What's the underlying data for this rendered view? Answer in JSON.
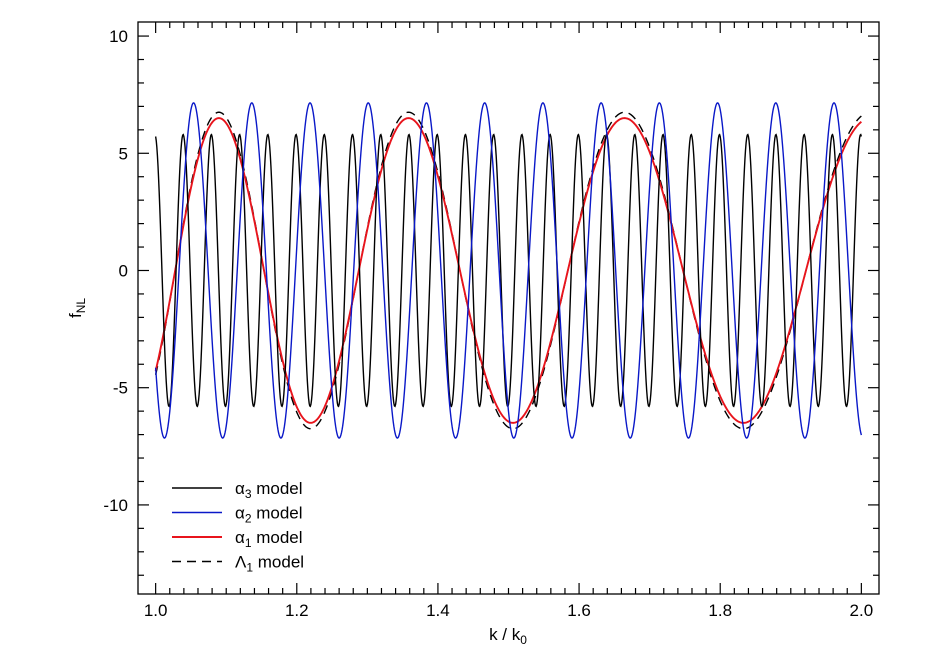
{
  "chart_data": {
    "type": "line",
    "title": "",
    "xlabel": "k / k",
    "xlabel_sub": "0",
    "ylabel": "f",
    "ylabel_sub": "NL",
    "xlim": [
      0.975,
      2.025
    ],
    "ylim": [
      -13.8,
      10.6
    ],
    "x_ticks": [
      1.0,
      1.2,
      1.4,
      1.6,
      1.8,
      2.0
    ],
    "x_tick_labels": [
      "1.0",
      "1.2",
      "1.4",
      "1.6",
      "1.8",
      "2.0"
    ],
    "y_ticks": [
      -10,
      -5,
      0,
      5,
      10
    ],
    "y_tick_labels": [
      "-10",
      "-5",
      "0",
      "5",
      "10"
    ],
    "grid": false,
    "legend_position": "bottom-left",
    "series": [
      {
        "name": "α",
        "name_sub": "3",
        "name_suffix": " model",
        "color": "#000000",
        "dash": "solid",
        "model": {
          "amplitude": 5.8,
          "period": 0.04,
          "phase": 1.74
        },
        "x": [
          1.0,
          1.005,
          1.01,
          1.015,
          1.02,
          1.025,
          1.03,
          1.035,
          1.04,
          1.045,
          1.05,
          1.055,
          1.06,
          1.065,
          1.07,
          1.075,
          1.08,
          1.085,
          1.09,
          1.095,
          1.1,
          1.105,
          1.11,
          1.115,
          1.12,
          1.125,
          1.13,
          1.135,
          1.14,
          1.145,
          1.15,
          1.155,
          1.16,
          1.165,
          1.17,
          1.175,
          1.18,
          1.185,
          1.19,
          1.195,
          1.2,
          1.205,
          1.21,
          1.215,
          1.22,
          1.225,
          1.23,
          1.235,
          1.24,
          1.245,
          1.25,
          1.255,
          1.26,
          1.265,
          1.27,
          1.275,
          1.28,
          1.285,
          1.29,
          1.295,
          1.3,
          1.305,
          1.31,
          1.315,
          1.32,
          1.325,
          1.33,
          1.335,
          1.34,
          1.345,
          1.35,
          1.355,
          1.36,
          1.365,
          1.37,
          1.375,
          1.38,
          1.385,
          1.39,
          1.395,
          1.4,
          1.405,
          1.41,
          1.415,
          1.42,
          1.425,
          1.43,
          1.435,
          1.44,
          1.445,
          1.45,
          1.455,
          1.46,
          1.465,
          1.47,
          1.475,
          1.48,
          1.485,
          1.49,
          1.495,
          1.5,
          1.505,
          1.51,
          1.515,
          1.52,
          1.525,
          1.53,
          1.535,
          1.54,
          1.545,
          1.55,
          1.555,
          1.56,
          1.565,
          1.57,
          1.575,
          1.58,
          1.585,
          1.59,
          1.595,
          1.6,
          1.605,
          1.61,
          1.615,
          1.62,
          1.625,
          1.63,
          1.635,
          1.64,
          1.645,
          1.65,
          1.655,
          1.66,
          1.665,
          1.67,
          1.675,
          1.68,
          1.685,
          1.69,
          1.695,
          1.7,
          1.705,
          1.71,
          1.715,
          1.72,
          1.725,
          1.73,
          1.735,
          1.74,
          1.745,
          1.75,
          1.755,
          1.76,
          1.765,
          1.77,
          1.775,
          1.78,
          1.785,
          1.79,
          1.795,
          1.8,
          1.805,
          1.81,
          1.815,
          1.82,
          1.825,
          1.83,
          1.835,
          1.84,
          1.845,
          1.85,
          1.855,
          1.86,
          1.865,
          1.87,
          1.875,
          1.88,
          1.885,
          1.89,
          1.895,
          1.9,
          1.905,
          1.91,
          1.915,
          1.92,
          1.925,
          1.93,
          1.935,
          1.94,
          1.945,
          1.95,
          1.955,
          1.96,
          1.965,
          1.97,
          1.975,
          1.98,
          1.985,
          1.99,
          1.995,
          2.0
        ]
      },
      {
        "name": "α",
        "name_sub": "2",
        "name_suffix": " model",
        "color": "#0a18c8",
        "dash": "solid",
        "model": {
          "amplitude": 7.15,
          "period": 0.0825,
          "phase": 3.76
        },
        "x": []
      },
      {
        "name": "α",
        "name_sub": "1",
        "name_suffix": " model",
        "color": "#e8141c",
        "dash": "solid",
        "model": {
          "type": "chirp",
          "amplitude": 6.5,
          "period_start": 0.24,
          "period_end": 0.37,
          "phase": -0.72
        },
        "x": []
      },
      {
        "name": "Λ",
        "name_sub": "1",
        "name_suffix": " model",
        "color": "#000000",
        "dash": "dashed",
        "model": {
          "type": "chirp",
          "amplitude": 6.75,
          "period_start": 0.24,
          "period_end": 0.37,
          "phase": -0.72
        },
        "x": []
      }
    ]
  }
}
